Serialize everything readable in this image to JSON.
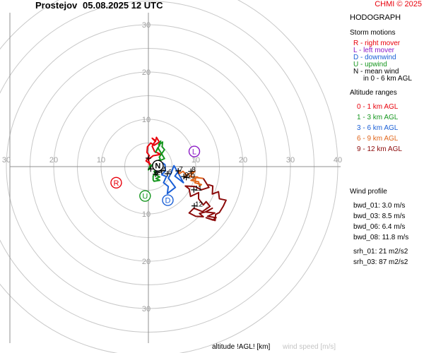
{
  "header": {
    "station": "Prostejov",
    "datetime": "05.08.2025 12 UTC",
    "copyright": "CHMI © 2025"
  },
  "panel": {
    "title": "HODOGRAPH",
    "storm_title": "Storm motions",
    "storm_items": [
      {
        "text": "R - right mover",
        "color": "#e8000b"
      },
      {
        "text": "L - left mover",
        "color": "#8b1ac6"
      },
      {
        "text": "D - downwind",
        "color": "#1a5fd6"
      },
      {
        "text": "U - upwind",
        "color": "#15961e"
      },
      {
        "text": "N - mean wind",
        "color": "#000000"
      },
      {
        "text": "in 0 - 6 km AGL",
        "color": "#000000"
      }
    ],
    "alt_title": "Altitude ranges",
    "alt_items": [
      {
        "text": "0 - 1 km AGL",
        "color": "#e8000b"
      },
      {
        "text": "1 - 3 km AGL",
        "color": "#15961e"
      },
      {
        "text": "3 - 6 km AGL",
        "color": "#1a5fd6"
      },
      {
        "text": "6 - 9 km AGL",
        "color": "#e0651a"
      },
      {
        "text": "9 - 12 km AGL",
        "color": "#8b0a0a"
      }
    ],
    "wind_title": "Wind profile",
    "wind_items": [
      "bwd_01: 3.0 m/s",
      "bwd_03: 8.5 m/s",
      "bwd_06: 6.4 m/s",
      "bwd_08: 11.8 m/s"
    ],
    "srh_items": [
      "srh_01: 21 m2/s2",
      "srh_03: 87 m2/s2"
    ]
  },
  "footer": {
    "altitude_label": "altitude !AGL! [km]",
    "speed_label": "wind speed [m/s]"
  },
  "chart_data": {
    "type": "hodograph",
    "rings": [
      5,
      10,
      15,
      20,
      25,
      30,
      35,
      40
    ],
    "ring_labels": [
      10,
      20,
      30,
      40
    ],
    "axis_range": [
      -40,
      40
    ],
    "units": "m/s",
    "series": [
      {
        "color": "#e8000b",
        "points": [
          [
            0.5,
            -0.5
          ],
          [
            0.0,
            1.5
          ],
          [
            1.0,
            2.3
          ],
          [
            2.6,
            2.6
          ],
          [
            1.3,
            3.2
          ],
          [
            0.8,
            4.3
          ],
          [
            1.5,
            5.5
          ],
          [
            0.8,
            6.0
          ],
          [
            1.5,
            5.3
          ],
          [
            1.7,
            6.2
          ],
          [
            2.3,
            5.2
          ],
          [
            1.2,
            4.5
          ],
          [
            0.5,
            5.0
          ],
          [
            -0.2,
            4.2
          ],
          [
            -0.3,
            3.0
          ],
          [
            0.2,
            2.3
          ],
          [
            -0.5,
            1.2
          ],
          [
            0.5,
            0.5
          ]
        ]
      },
      {
        "color": "#15961e",
        "points": [
          [
            0.5,
            0.5
          ],
          [
            0.0,
            -0.7
          ],
          [
            1.0,
            0.6
          ],
          [
            3.4,
            1.7
          ],
          [
            2.0,
            4.0
          ],
          [
            1.5,
            3.0
          ],
          [
            2.4,
            4.6
          ],
          [
            2.2,
            4.7
          ],
          [
            2.6,
            5.4
          ],
          [
            2.2,
            4.6
          ],
          [
            3.0,
            5.2
          ],
          [
            2.9,
            4.2
          ],
          [
            3.4,
            3.6
          ],
          [
            2.3,
            2.0
          ],
          [
            2.5,
            1.6
          ],
          [
            1.2,
            0.5
          ],
          [
            2.8,
            0.0
          ],
          [
            2.3,
            -0.7
          ],
          [
            1.2,
            -1.0
          ],
          [
            1.5,
            -1.7
          ],
          [
            2.4,
            -2.2
          ],
          [
            1.6,
            -2.5
          ],
          [
            2.4,
            -2.9
          ],
          [
            1.2,
            -3.1
          ],
          [
            1.0,
            -2.8
          ],
          [
            1.0,
            -2.0
          ],
          [
            1.7,
            -1.1
          ]
        ]
      },
      {
        "color": "#1a5fd6",
        "points": [
          [
            1.7,
            -1.1
          ],
          [
            3.0,
            0.8
          ],
          [
            3.5,
            0.4
          ],
          [
            3.6,
            -0.9
          ],
          [
            2.8,
            -1.7
          ],
          [
            3.8,
            -2.1
          ],
          [
            3.2,
            -3.4
          ],
          [
            4.2,
            -4.2
          ],
          [
            4.0,
            -5.7
          ],
          [
            5.7,
            -4.4
          ],
          [
            4.2,
            -2.4
          ],
          [
            4.8,
            -1.4
          ],
          [
            5.4,
            0.2
          ],
          [
            6.2,
            -1.2
          ],
          [
            7.4,
            -3.4
          ],
          [
            5.6,
            -2.0
          ],
          [
            6.5,
            -0.7
          ]
        ]
      },
      {
        "color": "#e0651a",
        "points": [
          [
            6.5,
            -0.7
          ],
          [
            6.5,
            -1.5
          ],
          [
            7.3,
            -1.0
          ],
          [
            8.0,
            -1.7
          ],
          [
            7.5,
            -2.4
          ],
          [
            8.5,
            -1.5
          ],
          [
            9.8,
            -1.0
          ],
          [
            8.7,
            -2.1
          ],
          [
            10.4,
            -2.2
          ],
          [
            9.0,
            -2.9
          ],
          [
            10.6,
            -3.2
          ],
          [
            10.8,
            -4.1
          ],
          [
            11.2,
            -3.8
          ],
          [
            9.8,
            -3.4
          ],
          [
            10.0,
            -2.3
          ],
          [
            11.6,
            -2.5
          ]
        ]
      },
      {
        "color": "#8b0a0a",
        "points": [
          [
            11.6,
            -2.5
          ],
          [
            12.8,
            -4.4
          ],
          [
            11.2,
            -4.9
          ],
          [
            9.8,
            -4.2
          ],
          [
            7.8,
            -4.1
          ],
          [
            8.6,
            -4.7
          ],
          [
            8.9,
            -6.3
          ],
          [
            10.6,
            -5.5
          ],
          [
            10.6,
            -6.8
          ],
          [
            11.6,
            -8.1
          ],
          [
            12.2,
            -7.4
          ],
          [
            13.0,
            -8.4
          ],
          [
            11.4,
            -9.5
          ],
          [
            9.6,
            -8.8
          ],
          [
            8.6,
            -9.8
          ],
          [
            10.0,
            -10.5
          ],
          [
            11.6,
            -10.6
          ],
          [
            10.8,
            -9.9
          ],
          [
            12.0,
            -9.6
          ],
          [
            13.5,
            -8.8
          ],
          [
            12.2,
            -9.6
          ],
          [
            14.0,
            -9.8
          ],
          [
            12.5,
            -10.5
          ],
          [
            14.3,
            -10.8
          ],
          [
            13.6,
            -11.3
          ],
          [
            12.2,
            -10.8
          ],
          [
            14.1,
            -11.4
          ],
          [
            14.2,
            -10.1
          ],
          [
            15.0,
            -9.7
          ],
          [
            15.8,
            -8.4
          ],
          [
            16.4,
            -7.1
          ],
          [
            15.0,
            -6.8
          ],
          [
            14.8,
            -5.3
          ],
          [
            13.5,
            -5.8
          ],
          [
            13.6,
            -4.1
          ],
          [
            12.6,
            -3.8
          ]
        ]
      }
    ],
    "altitude_marks": [
      {
        "km": 0,
        "u": 0.5,
        "v": -0.5,
        "label": ""
      },
      {
        "km": 1,
        "u": 0.0,
        "v": 1.8,
        "label": ""
      },
      {
        "km": 2,
        "u": 1.5,
        "v": -1.6,
        "label": "2"
      },
      {
        "km": 3,
        "u": 1.8,
        "v": -1.2,
        "label": "3"
      },
      {
        "km": 4,
        "u": 2.8,
        "v": -0.9,
        "label": "4"
      },
      {
        "km": 5,
        "u": 2.3,
        "v": -0.3,
        "label": "5"
      },
      {
        "km": 6,
        "u": 4.0,
        "v": -1.5,
        "label": "6"
      },
      {
        "km": 7,
        "u": 6.3,
        "v": -0.9,
        "label": "7"
      },
      {
        "km": 8,
        "u": 9.0,
        "v": -1.0,
        "label": "8"
      },
      {
        "km": 9,
        "u": 7.5,
        "v": -2.1,
        "label": "9"
      },
      {
        "km": 10,
        "u": 8.0,
        "v": -2.3,
        "label": "10"
      },
      {
        "km": 11,
        "u": 9.6,
        "v": -4.9,
        "label": "11"
      },
      {
        "km": 12,
        "u": 9.7,
        "v": -8.3,
        "label": "12"
      }
    ],
    "storm_motions": [
      {
        "id": "N",
        "u": 2.0,
        "v": 0.2,
        "color": "#000000"
      },
      {
        "id": "L",
        "u": 9.7,
        "v": 3.2,
        "color": "#8b1ac6"
      },
      {
        "id": "R",
        "u": -6.8,
        "v": -3.4,
        "color": "#e8000b"
      },
      {
        "id": "U",
        "u": -0.7,
        "v": -6.2,
        "color": "#15961e"
      },
      {
        "id": "D",
        "u": 4.1,
        "v": -7.1,
        "color": "#1a5fd6"
      }
    ]
  }
}
